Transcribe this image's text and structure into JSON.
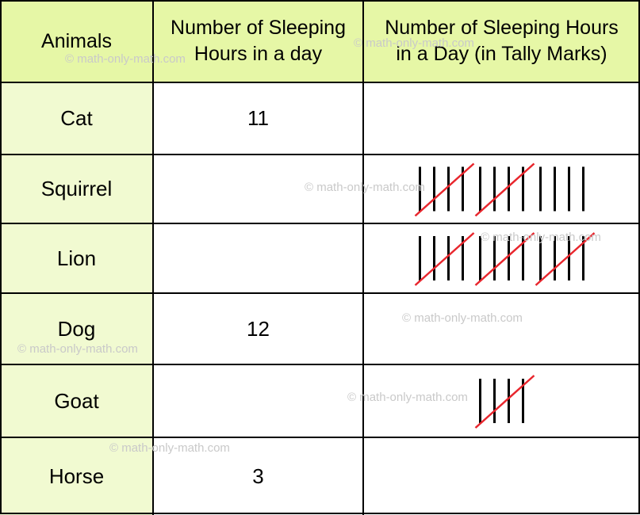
{
  "chart_data": {
    "type": "table",
    "columns": [
      "Animals",
      "Number of Sleeping Hours in a day",
      "Number of Sleeping Hours in a Day (in Tally Marks)"
    ],
    "header_lines": {
      "col1": [
        "Animals"
      ],
      "col2": [
        "Number of Sleeping",
        "Hours in a day"
      ],
      "col3": [
        "Number of Sleeping Hours",
        "in a Day (in Tally Marks)"
      ]
    },
    "rows": [
      {
        "animal": "Cat",
        "hours": "11",
        "tally": null
      },
      {
        "animal": "Squirrel",
        "hours": "",
        "tally": 14
      },
      {
        "animal": "Lion",
        "hours": "",
        "tally": 15
      },
      {
        "animal": "Dog",
        "hours": "12",
        "tally": null
      },
      {
        "animal": "Goat",
        "hours": "",
        "tally": 5
      },
      {
        "animal": "Horse",
        "hours": "3",
        "tally": null
      }
    ]
  },
  "watermark": "© math-only-math.com",
  "colors": {
    "header_bg": "#e6f7a6",
    "first_col_bg": "#f1fad1",
    "border": "#000000",
    "tally_stroke": "#000000",
    "tally_slash": "#e8262d",
    "watermark": "#c9c9c9"
  }
}
